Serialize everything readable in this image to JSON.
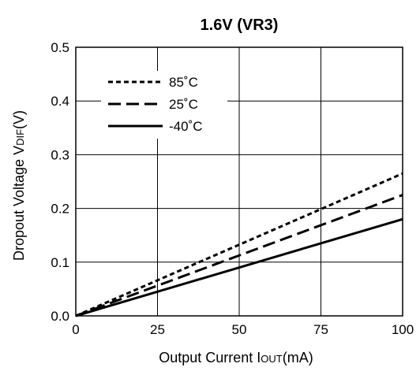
{
  "chart_data": {
    "type": "line",
    "title": "1.6V (VR3)",
    "xlabel": "Output Current IOUT(mA)",
    "xlabel_parts": [
      "Output Current I",
      "OUT",
      "(mA)"
    ],
    "ylabel": "Dropout Voltage VDIF(V)",
    "ylabel_parts": [
      "Dropout Voltage V",
      "DIF",
      "(V)"
    ],
    "xlim": [
      0,
      100
    ],
    "ylim": [
      0,
      0.5
    ],
    "x_ticks": [
      0,
      25,
      50,
      75,
      100
    ],
    "x_tick_labels": [
      "0",
      "25",
      "50",
      "75",
      "100"
    ],
    "y_ticks": [
      0,
      0.1,
      0.2,
      0.3,
      0.4,
      0.5
    ],
    "y_tick_labels": [
      "0.0",
      "0.1",
      "0.2",
      "0.3",
      "0.4",
      "0.5"
    ],
    "grid": true,
    "legend_position": "top-left",
    "series": [
      {
        "name": "85˚C",
        "style": "dotted",
        "x": [
          0,
          100
        ],
        "y": [
          0,
          0.265
        ]
      },
      {
        "name": "25˚C",
        "style": "dashed",
        "x": [
          0,
          100
        ],
        "y": [
          0,
          0.225
        ]
      },
      {
        "name": "-40˚C",
        "style": "solid",
        "x": [
          0,
          100
        ],
        "y": [
          0,
          0.18
        ]
      }
    ],
    "line_color": "#000000",
    "grid_color": "#000000"
  }
}
